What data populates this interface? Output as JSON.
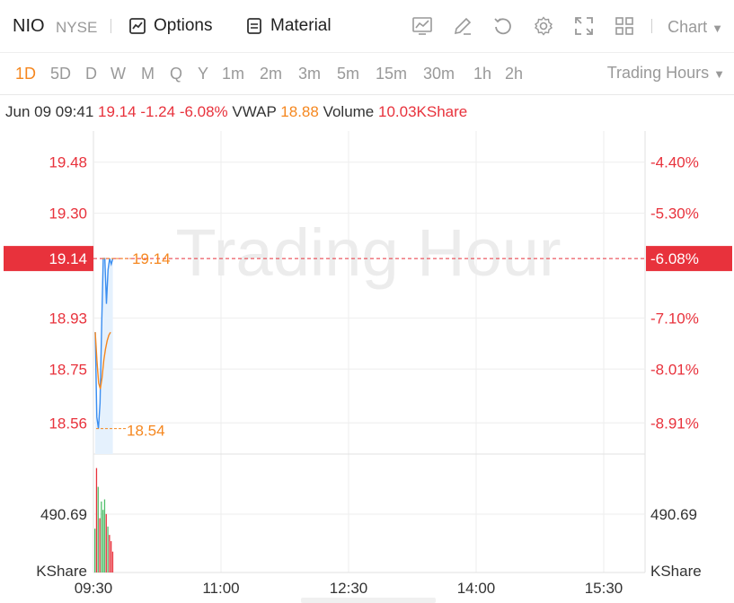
{
  "header": {
    "ticker": "NIO",
    "exchange": "NYSE",
    "options_label": "Options",
    "material_label": "Material",
    "chart_label": "Chart",
    "tools": [
      "chart-line-icon",
      "edit-icon",
      "refresh-icon",
      "gear-icon",
      "fullscreen-icon",
      "grid-icon"
    ]
  },
  "periods": {
    "items": [
      "1D",
      "5D",
      "D",
      "W",
      "M",
      "Q",
      "Y",
      "1m",
      "2m",
      "3m",
      "5m",
      "15m",
      "30m",
      "1h",
      "2h"
    ],
    "active": "1D",
    "session_label": "Trading Hours"
  },
  "info": {
    "datetime": "Jun 09 09:41",
    "price": "19.14",
    "change": "-1.24",
    "change_pct": "-6.08%",
    "vwap_label": "VWAP",
    "vwap_value": "18.88",
    "volume_label": "Volume",
    "volume_value": "10.03KShare"
  },
  "chart_data": {
    "type": "line",
    "watermark": "Trading Hour",
    "price_axis_left": [
      "19.48",
      "19.30",
      "18.93",
      "18.75",
      "18.56"
    ],
    "price_axis_right": [
      "-4.40%",
      "-5.30%",
      "-7.10%",
      "-8.01%",
      "-8.91%"
    ],
    "current_price_tag_left": "19.14",
    "current_price_tag_right": "-6.08%",
    "high_label": "19.14",
    "low_label": "18.54",
    "time_ticks": [
      "09:30",
      "11:00",
      "12:30",
      "14:00",
      "15:30"
    ],
    "volume_axis_left": [
      "490.69",
      "KShare"
    ],
    "volume_axis_right": [
      "490.69",
      "KShare"
    ],
    "ylim": [
      18.45,
      19.59
    ],
    "series": [
      {
        "values": [
          18.88,
          18.58,
          18.54,
          18.63,
          18.9,
          19.14,
          19.14,
          18.98,
          19.1,
          19.14,
          19.12,
          19.14
        ]
      },
      {
        "values": [
          18.88,
          18.78,
          18.7,
          18.68,
          18.72,
          18.78,
          18.82,
          18.85,
          18.87,
          18.88
        ]
      }
    ],
    "volume": {
      "ylim": [
        0,
        1100
      ],
      "bars": [
        {
          "v": 420,
          "c": "#4fbf6a"
        },
        {
          "v": 1000,
          "c": "#e8323c"
        },
        {
          "v": 820,
          "c": "#4fbf6a"
        },
        {
          "v": 520,
          "c": "#e8323c"
        },
        {
          "v": 680,
          "c": "#4fbf6a"
        },
        {
          "v": 600,
          "c": "#4fbf6a"
        },
        {
          "v": 700,
          "c": "#4fbf6a"
        },
        {
          "v": 560,
          "c": "#e8323c"
        },
        {
          "v": 440,
          "c": "#4fbf6a"
        },
        {
          "v": 360,
          "c": "#e8323c"
        },
        {
          "v": 300,
          "c": "#e8323c"
        },
        {
          "v": 200,
          "c": "#e8323c"
        }
      ]
    }
  },
  "colors": {
    "accent": "#f5871f",
    "down": "#e8323c",
    "up": "#4fbf6a",
    "price_line": "#3b8ef0",
    "grid": "#eeeeee"
  }
}
